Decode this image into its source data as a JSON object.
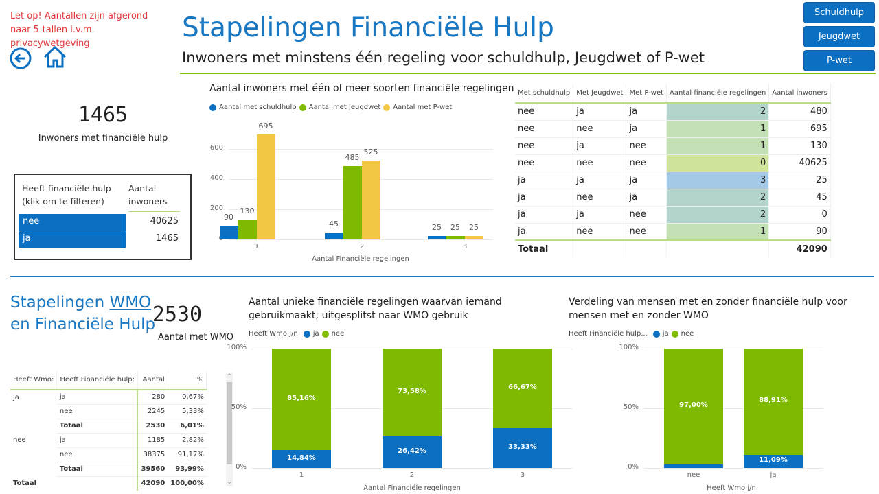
{
  "header": {
    "warning": "Let op! Aantallen zijn afgerond naar 5-tallen i.v.m. privacywetgeving",
    "title": "Stapelingen Financiële Hulp",
    "subtitle": "Inwoners met minstens één regeling voor schuldhulp, Jeugdwet of P-wet",
    "nav_buttons": [
      "Schuldhulp",
      "Jeugdwet",
      "P-wet"
    ],
    "icons": [
      "back-arrow-icon",
      "home-icon"
    ]
  },
  "colors": {
    "primary": "#0b6fc2",
    "green": "#7fba00",
    "yellow": "#f2c744",
    "title": "#1a78c2",
    "warning": "#e03a3a"
  },
  "kpi_top": {
    "value": "1465",
    "label": "Inwoners met financiële hulp"
  },
  "slicer": {
    "col1": "Heeft financiële hulp (klik om te filteren)",
    "col2": "Aantal inwoners",
    "rows": [
      {
        "key": "nee",
        "value": "40625"
      },
      {
        "key": "ja",
        "value": "1465"
      }
    ]
  },
  "right_table": {
    "headers": [
      "Met schuldhulp",
      "Met Jeugdwet",
      "Met P-wet",
      "Aantal financiële regelingen",
      "Aantal inwoners"
    ],
    "rows": [
      [
        "nee",
        "ja",
        "ja",
        "2",
        "480"
      ],
      [
        "nee",
        "nee",
        "ja",
        "1",
        "695"
      ],
      [
        "nee",
        "ja",
        "nee",
        "1",
        "130"
      ],
      [
        "nee",
        "nee",
        "nee",
        "0",
        "40625"
      ],
      [
        "ja",
        "ja",
        "ja",
        "3",
        "25"
      ],
      [
        "ja",
        "nee",
        "ja",
        "2",
        "45"
      ],
      [
        "ja",
        "ja",
        "nee",
        "2",
        "0"
      ],
      [
        "ja",
        "nee",
        "nee",
        "1",
        "90"
      ]
    ],
    "total_label": "Totaal",
    "total_value": "42090"
  },
  "wmo": {
    "title_part1": "Stapelingen ",
    "title_link": "WMO",
    "title_part2": "en Financiële Hulp",
    "kpi_value": "2530",
    "kpi_label": "Aantal met WMO"
  },
  "wmo_table": {
    "headers": [
      "Heeft Wmo:",
      "Heeft Financiële hulp:",
      "Aantal",
      "%"
    ],
    "rows": [
      [
        "ja",
        "ja",
        "280",
        "0,67%"
      ],
      [
        "",
        "nee",
        "2245",
        "5,33%"
      ],
      [
        "",
        "Totaal",
        "2530",
        "6,01%"
      ],
      [
        "nee",
        "ja",
        "1185",
        "2,82%"
      ],
      [
        "",
        "nee",
        "38375",
        "91,17%"
      ],
      [
        "",
        "Totaal",
        "39560",
        "93,99%"
      ],
      [
        "Totaal",
        "",
        "42090",
        "100,00%"
      ]
    ]
  },
  "chart_data": [
    {
      "type": "bar",
      "title": "Aantal inwoners met één of meer soorten financiële regelingen",
      "xlabel": "Aantal Financiële regelingen",
      "ylabel": "",
      "categories": [
        "1",
        "2",
        "3"
      ],
      "ylim": [
        0,
        700
      ],
      "yticks": [
        "0",
        "200",
        "400",
        "600"
      ],
      "grid": true,
      "legend": "top-left",
      "series": [
        {
          "name": "Aantal met schuldhulp",
          "values": [
            90,
            45,
            25
          ],
          "color": "#0b6fc2"
        },
        {
          "name": "Aantal met Jeugdwet",
          "values": [
            130,
            485,
            25
          ],
          "color": "#7fba00"
        },
        {
          "name": "Aantal met P-wet",
          "values": [
            695,
            525,
            25
          ],
          "color": "#f2c744"
        }
      ]
    },
    {
      "type": "bar",
      "stacked": "100%",
      "title": "Aantal unieke financiële regelingen waarvan iemand gebruikmaakt; uitgesplitst naar WMO gebruik",
      "legend_title": "Heeft Wmo j/n",
      "xlabel": "Aantal Financiële regelingen",
      "categories": [
        "1",
        "2",
        "3"
      ],
      "yticks": [
        "0%",
        "50%",
        "100%"
      ],
      "legend": "top-left",
      "series": [
        {
          "name": "ja",
          "values": [
            14.84,
            26.42,
            33.33
          ],
          "labels": [
            "14,84%",
            "26,42%",
            "33,33%"
          ],
          "color": "#0b6fc2"
        },
        {
          "name": "nee",
          "values": [
            85.16,
            73.58,
            66.67
          ],
          "labels": [
            "85,16%",
            "73,58%",
            "66,67%"
          ],
          "color": "#7fba00"
        }
      ]
    },
    {
      "type": "bar",
      "stacked": "100%",
      "title": "Verdeling van mensen met en zonder financiële hulp voor mensen met en zonder WMO",
      "legend_title": "Heeft Financiële hulp...",
      "xlabel": "Heeft Wmo j/n",
      "categories": [
        "nee",
        "ja"
      ],
      "yticks": [
        "0%",
        "50%",
        "100%"
      ],
      "legend": "top-left",
      "series": [
        {
          "name": "ja",
          "values": [
            3.0,
            11.09
          ],
          "labels": [
            "",
            "11,09%"
          ],
          "color": "#0b6fc2"
        },
        {
          "name": "nee",
          "values": [
            97.0,
            88.91
          ],
          "labels": [
            "97,00%",
            "88,91%"
          ],
          "color": "#7fba00"
        }
      ]
    }
  ]
}
